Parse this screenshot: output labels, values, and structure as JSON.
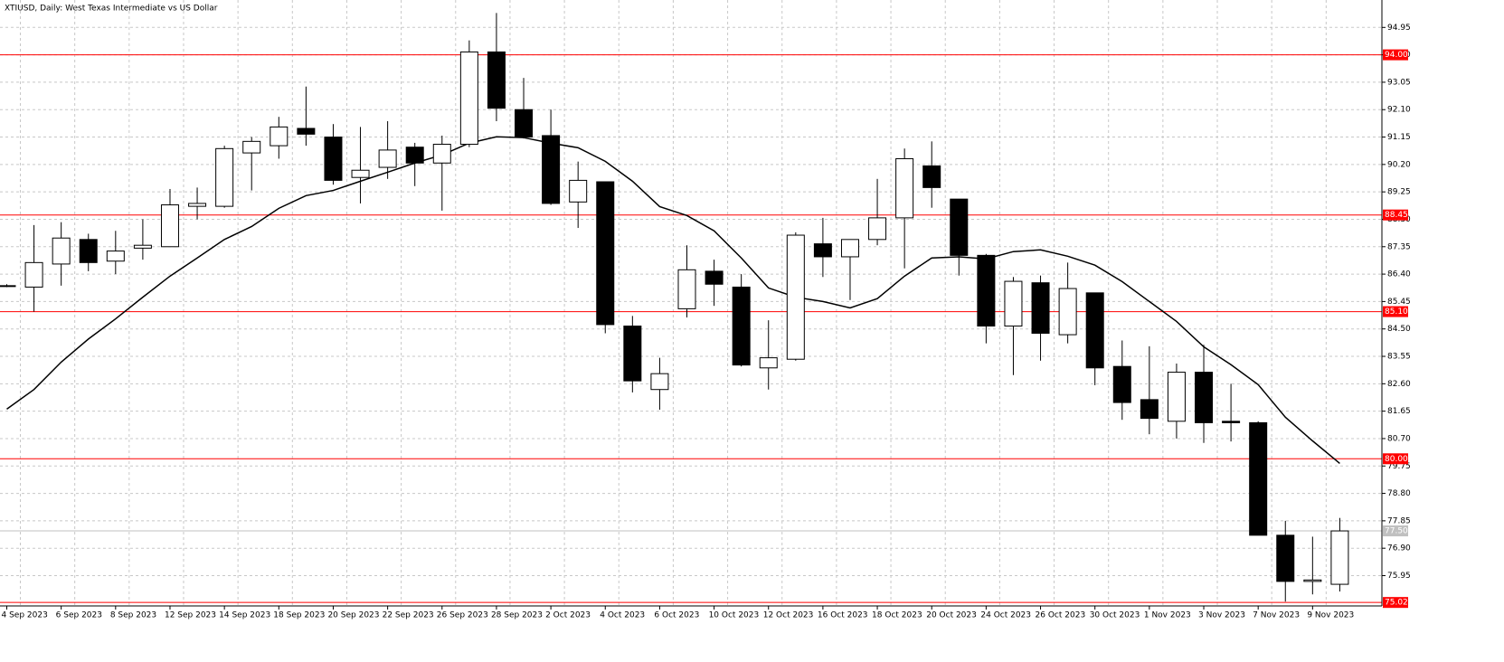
{
  "chart_data": {
    "type": "candlestick",
    "title": "XTIUSD, Daily:  West Texas Intermediate vs US Dollar",
    "categories": [
      "4 Sep 2023",
      null,
      "6 Sep 2023",
      null,
      "8 Sep 2023",
      null,
      "12 Sep 2023",
      null,
      "14 Sep 2023",
      null,
      "18 Sep 2023",
      null,
      "20 Sep 2023",
      null,
      "22 Sep 2023",
      null,
      "26 Sep 2023",
      null,
      "28 Sep 2023",
      null,
      "2 Oct 2023",
      null,
      "4 Oct 2023",
      null,
      "6 Oct 2023",
      null,
      "10 Oct 2023",
      null,
      "12 Oct 2023",
      null,
      "16 Oct 2023",
      null,
      "18 Oct 2023",
      null,
      "20 Oct 2023",
      null,
      "24 Oct 2023",
      null,
      "26 Oct 2023",
      null,
      "30 Oct 2023",
      null,
      "1 Nov 2023",
      null,
      "3 Nov 2023",
      null,
      "7 Nov 2023",
      null,
      "9 Nov 2023",
      null
    ],
    "open": [
      86.0,
      85.95,
      86.75,
      87.6,
      86.85,
      87.3,
      87.35,
      88.75,
      88.75,
      90.6,
      90.85,
      91.45,
      91.15,
      89.75,
      90.1,
      90.8,
      90.25,
      90.9,
      94.1,
      92.1,
      91.2,
      88.9,
      89.6,
      84.6,
      82.4,
      85.2,
      86.5,
      85.95,
      83.15,
      83.45,
      87.45,
      87.0,
      87.6,
      88.35,
      90.15,
      89.0,
      87.05,
      84.6,
      86.1,
      84.3,
      85.75,
      83.2,
      82.05,
      81.3,
      83.0,
      81.3,
      81.25,
      77.35,
      75.75,
      75.65
    ],
    "high": [
      86.05,
      88.1,
      88.2,
      87.8,
      87.9,
      88.3,
      89.35,
      89.4,
      90.85,
      91.15,
      91.85,
      92.9,
      91.6,
      91.5,
      91.7,
      90.95,
      91.2,
      94.5,
      95.45,
      93.2,
      92.1,
      90.3,
      89.6,
      84.95,
      83.5,
      87.4,
      86.9,
      86.4,
      84.8,
      87.85,
      88.35,
      87.6,
      89.7,
      90.75,
      91.0,
      89.0,
      87.1,
      86.3,
      86.35,
      86.8,
      85.75,
      84.1,
      83.9,
      83.3,
      83.95,
      82.6,
      81.3,
      77.85,
      77.3,
      77.95
    ],
    "low": [
      85.95,
      85.1,
      86.0,
      86.5,
      86.4,
      86.9,
      87.35,
      88.3,
      88.7,
      89.3,
      90.4,
      90.85,
      89.5,
      88.85,
      89.7,
      89.45,
      88.6,
      90.8,
      91.7,
      91.1,
      88.8,
      88.0,
      84.35,
      82.3,
      81.7,
      84.9,
      85.3,
      83.2,
      82.4,
      83.4,
      86.3,
      85.5,
      87.4,
      86.6,
      88.7,
      86.35,
      84.0,
      82.9,
      83.4,
      84.0,
      82.55,
      81.35,
      80.85,
      80.7,
      80.55,
      80.6,
      77.35,
      75.05,
      75.3,
      75.4
    ],
    "close": [
      86.0,
      86.8,
      87.65,
      86.8,
      87.2,
      87.4,
      88.8,
      88.85,
      90.75,
      91.0,
      91.5,
      91.25,
      89.65,
      90.0,
      90.7,
      90.25,
      90.9,
      94.1,
      92.15,
      91.15,
      88.85,
      89.65,
      84.65,
      82.7,
      82.95,
      86.55,
      86.05,
      83.25,
      83.5,
      87.75,
      87.0,
      87.6,
      88.35,
      90.4,
      89.4,
      87.05,
      84.6,
      86.15,
      84.35,
      85.9,
      83.15,
      81.95,
      81.4,
      83.0,
      81.25,
      81.25,
      77.35,
      75.75,
      75.8,
      77.5
    ],
    "ma": {
      "color": "#000000",
      "values": [
        81.72,
        82.4,
        83.35,
        84.15,
        84.85,
        85.6,
        86.33,
        86.96,
        87.6,
        88.05,
        88.68,
        89.12,
        89.3,
        89.62,
        89.93,
        90.25,
        90.53,
        90.94,
        91.16,
        91.13,
        90.94,
        90.78,
        90.31,
        89.62,
        88.74,
        88.43,
        87.9,
        86.96,
        85.92,
        85.6,
        85.45,
        85.23,
        85.55,
        86.33,
        86.96,
        87.0,
        86.93,
        87.18,
        87.24,
        87.02,
        86.71,
        86.14,
        85.45,
        84.76,
        83.88,
        83.26,
        82.57,
        81.44,
        80.62,
        79.84
      ]
    },
    "bull_color": "#ffffff",
    "bear_color": "#000000",
    "ylim": [
      74.9,
      95.9
    ],
    "yticks": [
      94.95,
      {
        "value": 94.0,
        "label": "94.00"
      },
      93.05,
      {
        "value": 92.1,
        "label": "92.10"
      },
      91.15,
      {
        "value": 90.2,
        "label": "90.20"
      },
      89.25,
      {
        "value": 88.3,
        "label": "88.30"
      },
      87.35,
      {
        "value": 86.4,
        "label": "86.40"
      },
      85.45,
      {
        "value": 84.5,
        "label": "84.50"
      },
      83.55,
      {
        "value": 82.6,
        "label": "82.60"
      },
      81.65,
      {
        "value": 80.7,
        "label": "80.70"
      },
      79.75,
      {
        "value": 78.8,
        "label": "78.80"
      },
      77.85,
      {
        "value": 76.9,
        "label": "76.90"
      },
      75.95
    ],
    "grid": true,
    "levels": [
      {
        "value": 94.0,
        "label": "94.00",
        "color": "#ff0000"
      },
      {
        "value": 88.45,
        "label": "88.45",
        "color": "#ff0000"
      },
      {
        "value": 85.1,
        "label": "85.10",
        "color": "#ff0000"
      },
      {
        "value": 80.0,
        "label": "80.00",
        "color": "#ff0000"
      },
      {
        "value": 77.5,
        "label": "77.50",
        "color": "#c0c0c0"
      },
      {
        "value": 75.02,
        "label": "75.02",
        "color": "#ff0000"
      }
    ]
  }
}
